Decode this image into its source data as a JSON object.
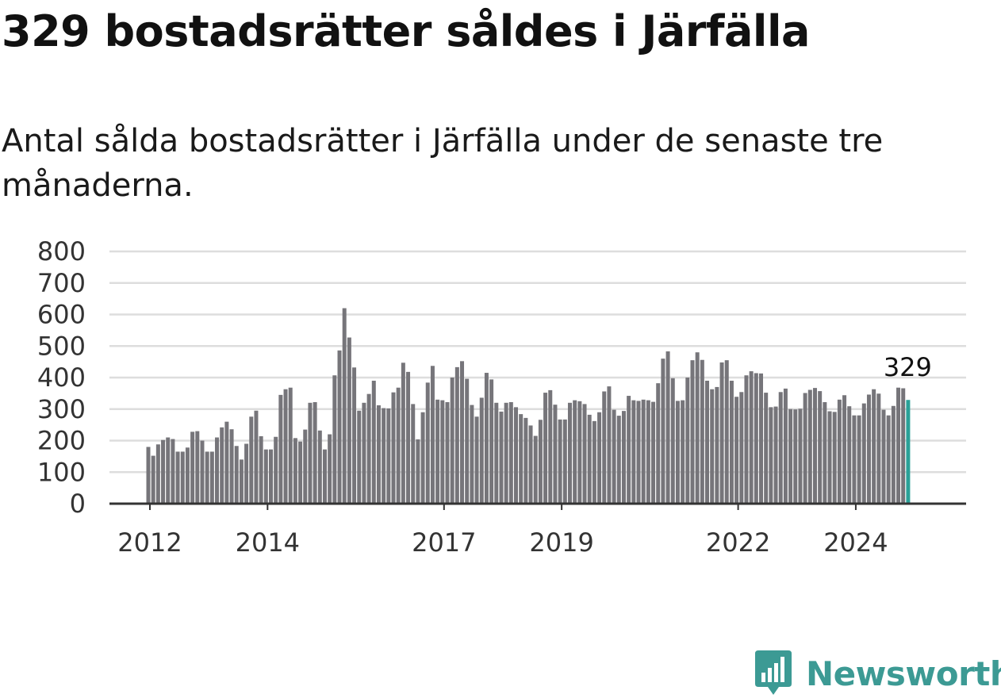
{
  "title": "329 bostadsrätter såldes i Järfälla",
  "subtitle": "Antal sålda bostadsrätter i Järfälla under de senaste tre månaderna.",
  "brand": {
    "name": "Newsworthy"
  },
  "colors": {
    "bar": "#76757a",
    "highlight": "#2aa198",
    "grid": "#dddddd",
    "axis": "#333333",
    "brand": "#3c9a94"
  },
  "chart_data": {
    "type": "bar",
    "x_start": "2012-01",
    "x_end": "2025-02",
    "x_ticks": [
      "2012",
      "2014",
      "2017",
      "2019",
      "2022",
      "2024"
    ],
    "y_ticks": [
      0,
      100,
      200,
      300,
      400,
      500,
      600,
      700,
      800
    ],
    "ylim": [
      0,
      800
    ],
    "grid": true,
    "highlight_value_label": "329",
    "values": [
      180,
      152,
      188,
      202,
      210,
      205,
      165,
      165,
      178,
      228,
      230,
      200,
      165,
      165,
      210,
      242,
      260,
      236,
      183,
      140,
      190,
      276,
      295,
      214,
      172,
      172,
      212,
      345,
      363,
      368,
      208,
      197,
      235,
      320,
      322,
      232,
      172,
      220,
      407,
      486,
      620,
      527,
      432,
      295,
      320,
      348,
      390,
      312,
      303,
      302,
      353,
      368,
      447,
      418,
      316,
      204,
      290,
      384,
      437,
      330,
      328,
      322,
      400,
      433,
      452,
      396,
      313,
      276,
      336,
      415,
      394,
      320,
      292,
      320,
      322,
      306,
      284,
      272,
      248,
      215,
      266,
      352,
      360,
      314,
      267,
      267,
      320,
      328,
      325,
      316,
      282,
      262,
      290,
      356,
      372,
      298,
      279,
      294,
      342,
      328,
      326,
      330,
      328,
      323,
      382,
      460,
      483,
      398,
      326,
      328,
      400,
      455,
      480,
      456,
      390,
      363,
      370,
      448,
      455,
      390,
      339,
      354,
      407,
      420,
      414,
      413,
      352,
      306,
      308,
      354,
      365,
      300,
      299,
      301,
      351,
      361,
      367,
      357,
      322,
      293,
      291,
      330,
      344,
      309,
      280,
      280,
      318,
      346,
      363,
      349,
      298,
      280,
      310,
      368,
      366,
      329
    ]
  }
}
